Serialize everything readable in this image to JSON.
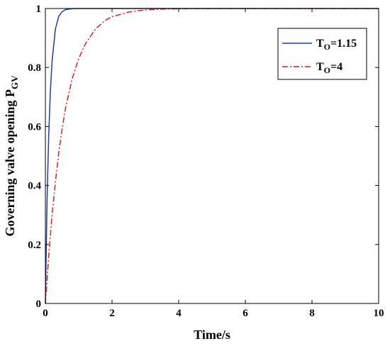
{
  "chart_data": {
    "type": "line",
    "xlabel": "Time/s",
    "ylabel": {
      "main": "Governing valve opening P",
      "subscript": "GV"
    },
    "xlim": [
      0,
      10
    ],
    "ylim": [
      0,
      1
    ],
    "xticks": [
      "0",
      "2",
      "4",
      "6",
      "8",
      "10"
    ],
    "yticks": [
      "0",
      "0.2",
      "0.4",
      "0.6",
      "0.8",
      "1"
    ],
    "grid": false,
    "legend_position": "top-right",
    "series": [
      {
        "name": "T_O=1.15",
        "label_main": "T",
        "label_sub": "O",
        "label_rest": "=1.15",
        "color": "#1f3f9f",
        "dash": "solid",
        "x": [
          0,
          0.05,
          0.1,
          0.15,
          0.2,
          0.3,
          0.4,
          0.5,
          0.6,
          0.7,
          0.8,
          0.9,
          1.0,
          1.2,
          1.5,
          2,
          4,
          6,
          8,
          10
        ],
        "y": [
          0,
          0.35,
          0.57,
          0.72,
          0.82,
          0.93,
          0.973,
          0.989,
          0.996,
          0.998,
          0.999,
          1.0,
          1.0,
          1.0,
          1.0,
          1.0,
          1.0,
          1.0,
          1.0,
          1.0
        ]
      },
      {
        "name": "T_O=4",
        "label_main": "T",
        "label_sub": "O",
        "label_rest": "=4",
        "color": "#d62020",
        "dash": "dashdot",
        "x": [
          0,
          0.1,
          0.2,
          0.3,
          0.4,
          0.5,
          0.6,
          0.8,
          1.0,
          1.2,
          1.5,
          1.8,
          2.0,
          2.5,
          3.0,
          3.5,
          4.0,
          5,
          6,
          8,
          10
        ],
        "y": [
          0,
          0.16,
          0.3,
          0.41,
          0.51,
          0.59,
          0.66,
          0.76,
          0.83,
          0.88,
          0.93,
          0.96,
          0.972,
          0.988,
          0.995,
          0.998,
          0.999,
          1.0,
          1.0,
          1.0,
          1.0
        ]
      }
    ]
  }
}
